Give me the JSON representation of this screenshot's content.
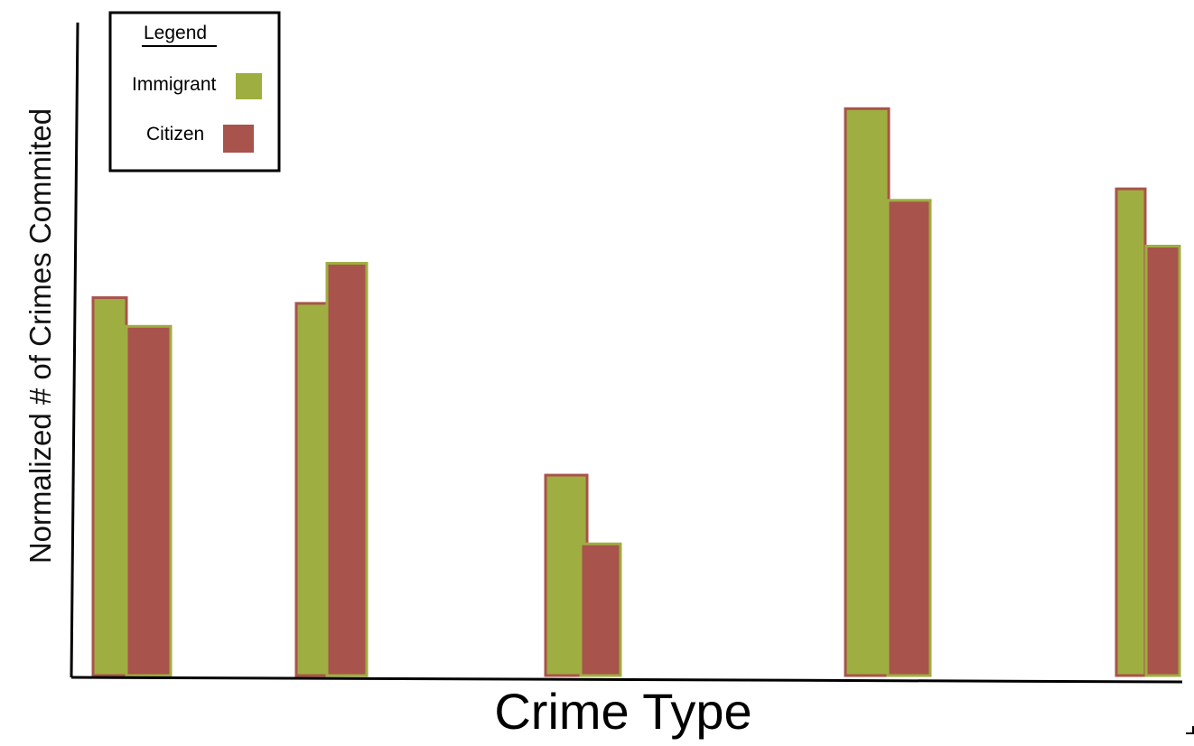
{
  "chart_data": {
    "type": "bar",
    "xlabel": "Crime Type",
    "ylabel": "Normalized # of Crimes Commited",
    "categories": [
      "",
      "",
      "",
      "",
      ""
    ],
    "legend": {
      "title": "Legend",
      "position": "top-left"
    },
    "series": [
      {
        "name": "Immigrant",
        "color": "#9fae40",
        "values": [
          66,
          65,
          35,
          99,
          85
        ]
      },
      {
        "name": "Citizen",
        "color": "#a8534b",
        "values": [
          61,
          72,
          23,
          83,
          75
        ]
      }
    ],
    "ylim": [
      0,
      100
    ],
    "grid": false,
    "show_ticks": false
  }
}
